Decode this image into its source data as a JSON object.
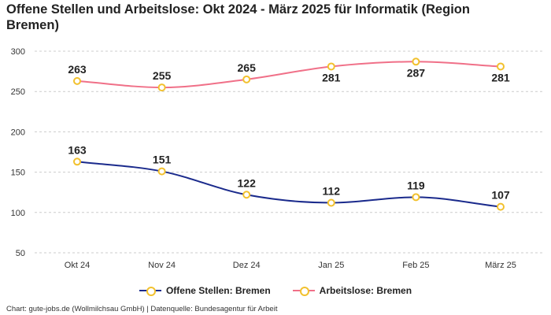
{
  "title": "Offene Stellen und Arbeitslose: Okt 2024 - März 2025 für Informatik (Region Bremen)",
  "footer": "Chart: gute-jobs.de (Wollmilchsau GmbH) | Datenquelle: Bundesagentur für Arbeit",
  "colors": {
    "offene_stellen": "#1a2a8c",
    "arbeitslose": "#f07088",
    "marker_border": "#f2c12e",
    "grid": "#cccccc"
  },
  "chart_data": {
    "type": "line",
    "categories": [
      "Okt 24",
      "Nov 24",
      "Dez 24",
      "Jan 25",
      "Feb 25",
      "März 25"
    ],
    "series": [
      {
        "name": "Offene Stellen: Bremen",
        "values": [
          163,
          151,
          122,
          112,
          119,
          107
        ]
      },
      {
        "name": "Arbeitslose: Bremen",
        "values": [
          263,
          255,
          265,
          281,
          287,
          281
        ]
      }
    ],
    "yticks": [
      50,
      100,
      150,
      200,
      250,
      300
    ],
    "ylim": [
      40,
      310
    ],
    "grid": true,
    "legend_position": "bottom"
  }
}
